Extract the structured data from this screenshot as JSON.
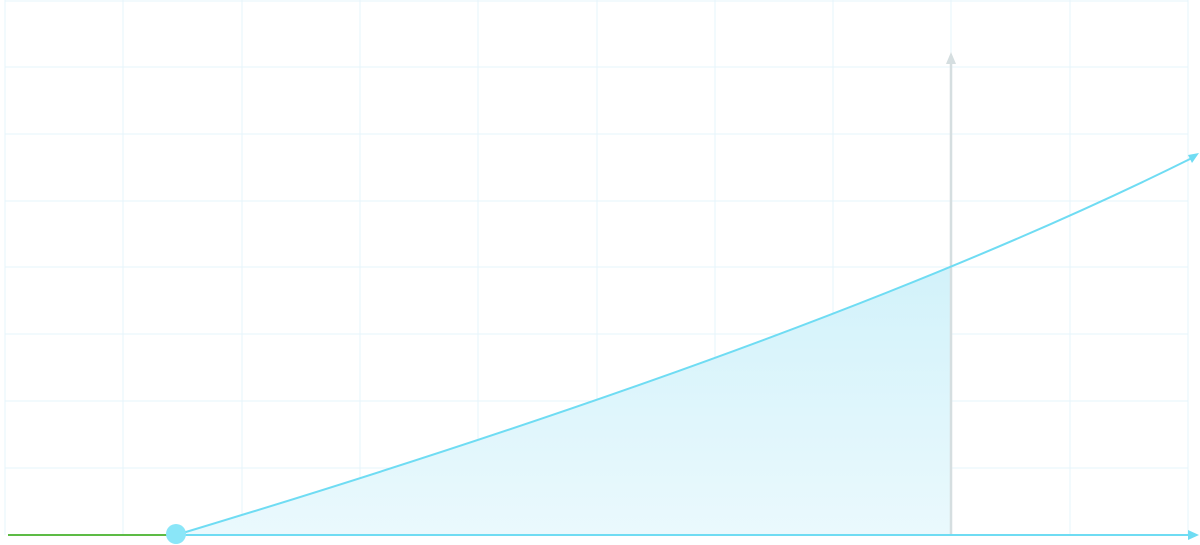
{
  "colors": {
    "background": "#ffffff",
    "grid": "#e6f4fb",
    "curve": "#6fdcf3",
    "fill_top": "#c8eff9",
    "fill_bottom": "#eaf9fd",
    "baseline_left": "#5dbb45",
    "axis": "#6fdcf3",
    "start_point": "#8ae6f8",
    "marker_line": "#d5dee0"
  },
  "icons": {
    "curve_end": "arrow-head",
    "axis_end": "arrow-head",
    "marker_end": "arrow-head"
  }
}
